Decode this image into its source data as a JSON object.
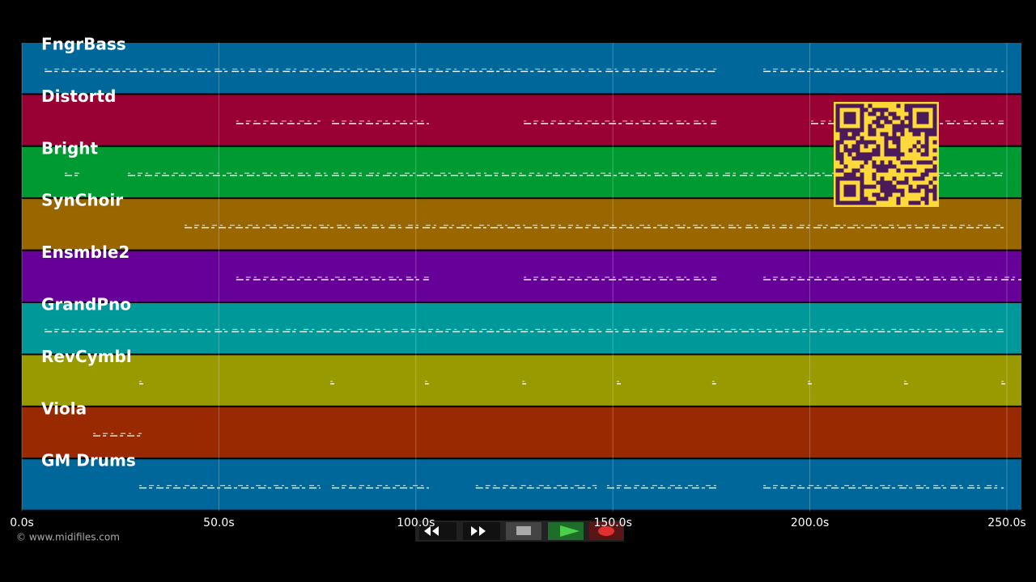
{
  "tracks": [
    {
      "name": "FngrBass",
      "color": "#00679a",
      "notes": [
        [
          5.8,
          176.3
        ],
        [
          188.2,
          249.2
        ]
      ]
    },
    {
      "name": "Distortd",
      "color": "#990033",
      "notes": [
        [
          54.4,
          75.8
        ],
        [
          78.7,
          103.3
        ],
        [
          127.4,
          176.3
        ],
        [
          200.3,
          249.2
        ]
      ]
    },
    {
      "name": "Bright",
      "color": "#009a33",
      "notes": [
        [
          10.9,
          15
        ],
        [
          26.9,
          249.2
        ]
      ]
    },
    {
      "name": "SynChoir",
      "color": "#996600",
      "notes": [
        [
          41.3,
          249.2
        ]
      ]
    },
    {
      "name": "Ensmble2",
      "color": "#660099",
      "notes": [
        [
          54.4,
          103.3
        ],
        [
          127.4,
          176.3
        ],
        [
          188.2,
          253.7
        ]
      ]
    },
    {
      "name": "GrandPno",
      "color": "#009999",
      "notes": [
        [
          5.8,
          249.2
        ]
      ]
    },
    {
      "name": "RevCymbl",
      "color": "#999900",
      "notes": [
        [
          29.8,
          30.8
        ],
        [
          78.3,
          79.3
        ],
        [
          102.3,
          103.3
        ],
        [
          127,
          128
        ],
        [
          151,
          152
        ],
        [
          175.2,
          176.2
        ],
        [
          199.5,
          200.5
        ],
        [
          223.9,
          224.9
        ],
        [
          248.6,
          249.6
        ]
      ]
    },
    {
      "name": "Viola",
      "color": "#992900",
      "notes": [
        [
          18.1,
          30.4
        ]
      ]
    },
    {
      "name": "GM Drums",
      "color": "#00679a",
      "notes": [
        [
          29.8,
          75.8
        ],
        [
          78.7,
          103.3
        ],
        [
          115.2,
          145.9
        ],
        [
          148.5,
          176.3
        ],
        [
          188.2,
          249.2
        ]
      ]
    }
  ],
  "time_axis": {
    "xlim": [
      0,
      253.7
    ],
    "ticks": [
      {
        "value": 0,
        "label": "0.0s"
      },
      {
        "value": 50,
        "label": "50.0s"
      },
      {
        "value": 100,
        "label": "100.0s"
      },
      {
        "value": 150,
        "label": "150.0s"
      },
      {
        "value": 200,
        "label": "200.0s"
      },
      {
        "value": 250,
        "label": "250.0s"
      }
    ]
  },
  "footer": "© www.midifiles.com"
}
